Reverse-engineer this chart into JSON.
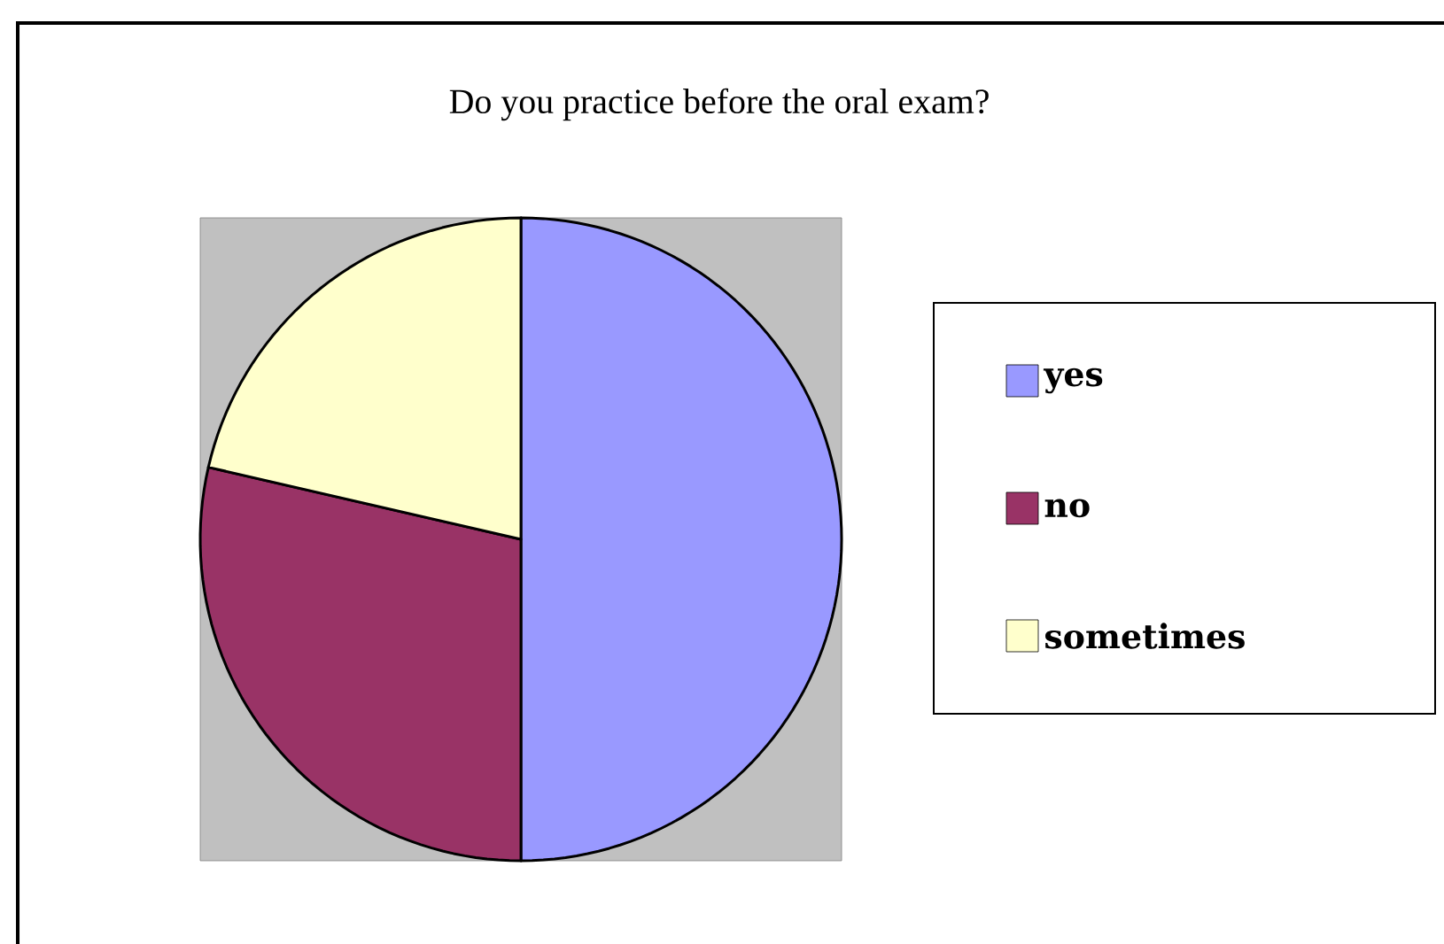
{
  "chart_data": {
    "type": "pie",
    "title": "Do you practice before the oral exam?",
    "categories": [
      "yes",
      "no",
      "sometimes"
    ],
    "values": [
      50,
      28.6,
      21.4
    ],
    "colors": [
      "#9999ff",
      "#993366",
      "#ffffcc"
    ],
    "legend": "right"
  }
}
